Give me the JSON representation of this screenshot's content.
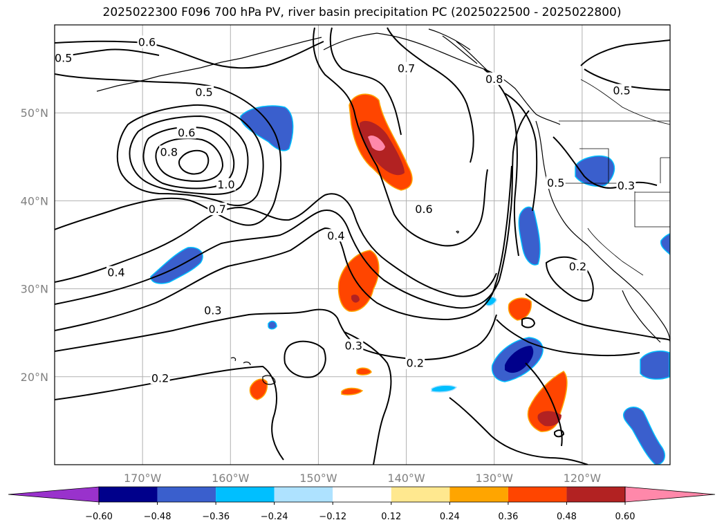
{
  "title": "2025022300 F096 700 hPa PV, river basin precipitation PC (2025022500 - 2025022800)",
  "map": {
    "lon_ticks": [
      "170°W",
      "160°W",
      "150°W",
      "140°W",
      "130°W",
      "120°W"
    ],
    "lat_ticks": [
      "50°N",
      "40°N",
      "30°N",
      "20°N"
    ]
  },
  "contour_labels": [
    {
      "text": "0.6",
      "lon": -169.5,
      "lat": 58.0
    },
    {
      "text": "0.5",
      "lon": -179.0,
      "lat": 56.2
    },
    {
      "text": "0.5",
      "lon": -163.0,
      "lat": 52.3
    },
    {
      "text": "0.6",
      "lon": -165.0,
      "lat": 47.7
    },
    {
      "text": "0.8",
      "lon": -167.0,
      "lat": 45.5
    },
    {
      "text": "1.0",
      "lon": -160.5,
      "lat": 41.8
    },
    {
      "text": "0.7",
      "lon": -161.5,
      "lat": 39.0
    },
    {
      "text": "0.4",
      "lon": -173.0,
      "lat": 31.8
    },
    {
      "text": "0.3",
      "lon": -162.0,
      "lat": 27.5
    },
    {
      "text": "0.2",
      "lon": -168.0,
      "lat": 19.8
    },
    {
      "text": "0.4",
      "lon": -148.0,
      "lat": 36.0
    },
    {
      "text": "0.3",
      "lon": -146.0,
      "lat": 23.5
    },
    {
      "text": "0.2",
      "lon": -139.0,
      "lat": 21.5
    },
    {
      "text": "0.7",
      "lon": -140.0,
      "lat": 55.0
    },
    {
      "text": "0.8",
      "lon": -130.0,
      "lat": 53.8
    },
    {
      "text": "0.6",
      "lon": -138.0,
      "lat": 39.0
    },
    {
      "text": "0.5",
      "lon": -123.0,
      "lat": 42.0
    },
    {
      "text": "0.5",
      "lon": -115.5,
      "lat": 52.5
    },
    {
      "text": "0.3",
      "lon": -115.0,
      "lat": 41.7
    },
    {
      "text": "0.2",
      "lon": -120.5,
      "lat": 32.5
    }
  ],
  "colorbar": {
    "ticks": [
      "−0.60",
      "−0.48",
      "−0.36",
      "−0.24",
      "−0.12",
      "0.12",
      "0.24",
      "0.36",
      "0.48",
      "0.60"
    ],
    "colors": [
      "#9932cc",
      "#00008b",
      "#3a5fcd",
      "#00bfff",
      "#aee2ff",
      "#ffffff",
      "#ffe88f",
      "#ffa500",
      "#ff4500",
      "#b22222",
      "#ff88aa"
    ]
  }
}
